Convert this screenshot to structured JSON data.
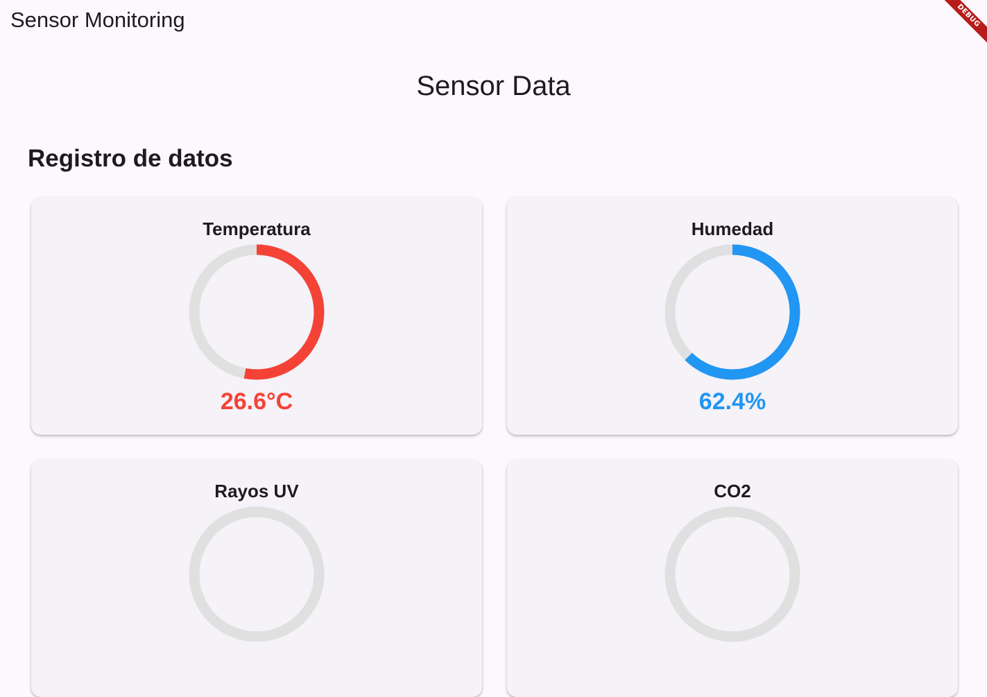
{
  "app_bar": {
    "title": "Sensor Monitoring"
  },
  "debug_banner": {
    "label": "DEBUG",
    "color": "#b71c1c"
  },
  "page": {
    "heading": "Sensor Data",
    "section_title": "Registro de datos"
  },
  "sensors": [
    {
      "title": "Temperatura",
      "value_text": "26.6°C",
      "fraction": 0.53,
      "color": "#f44336"
    },
    {
      "title": "Humedad",
      "value_text": "62.4%",
      "fraction": 0.624,
      "color": "#2196f3"
    },
    {
      "title": "Rayos UV",
      "value_text": "",
      "fraction": 0,
      "color": "#9e9e9e"
    },
    {
      "title": "CO2",
      "value_text": "",
      "fraction": 0,
      "color": "#9e9e9e"
    }
  ],
  "gauge_track_color": "#e0e0e0"
}
